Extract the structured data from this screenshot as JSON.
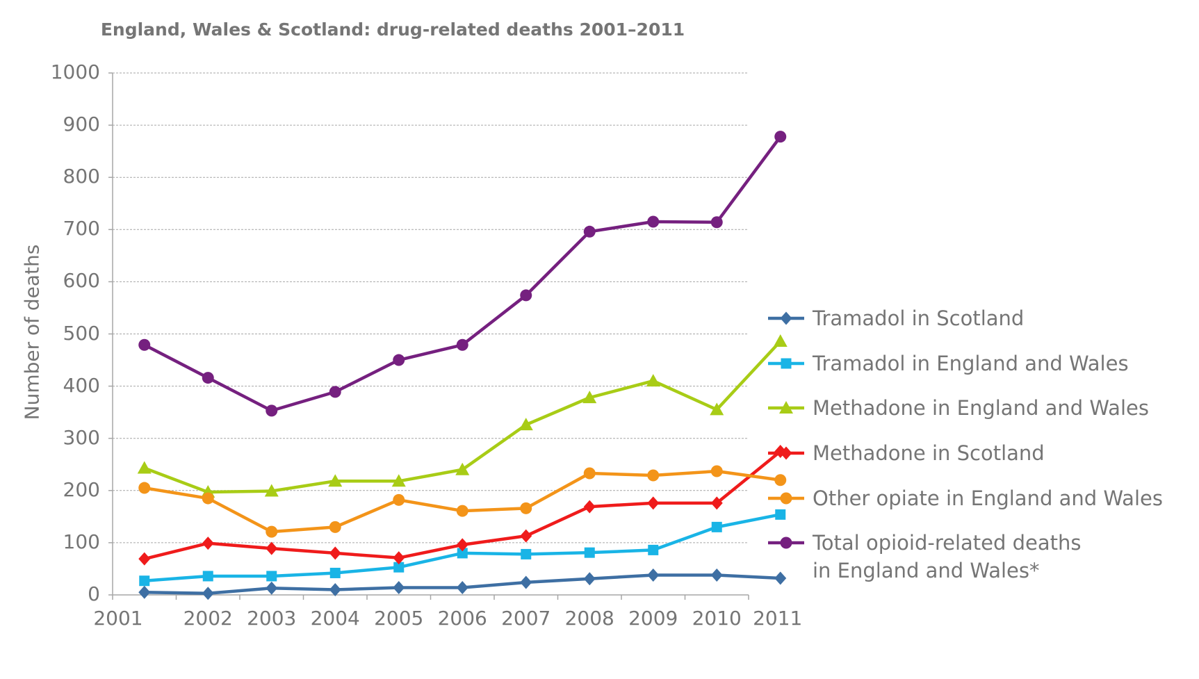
{
  "chart_data": {
    "type": "line",
    "title": "England, Wales & Scotland: drug-related deaths 2001–2011",
    "xlabel": "",
    "ylabel": "Number of deaths",
    "ylim": [
      0,
      1000
    ],
    "yticks": [
      "0",
      "100",
      "200",
      "300",
      "400",
      "500",
      "600",
      "700",
      "800",
      "900",
      "1000"
    ],
    "xticks": [
      "2001",
      "2002",
      "2003",
      "2004",
      "2005",
      "2006",
      "2007",
      "2008",
      "2009",
      "2010",
      "2011"
    ],
    "categories": [
      "2001",
      "2002",
      "2003",
      "2004",
      "2005",
      "2006",
      "2007",
      "2008",
      "2009",
      "2010",
      "2011"
    ],
    "grid": "horizontal dashed",
    "legend_position": "right",
    "series": [
      {
        "name": "Tramadol in Scotland",
        "color": "#3e6fa3",
        "marker": "diamond",
        "values": [
          5,
          3,
          13,
          10,
          14,
          14,
          24,
          31,
          38,
          38,
          32
        ]
      },
      {
        "name": "Tramadol in England and Wales",
        "color": "#19b4e6",
        "marker": "square",
        "values": [
          27,
          36,
          36,
          42,
          53,
          80,
          78,
          81,
          86,
          130,
          154
        ]
      },
      {
        "name": "Methadone in England and Wales",
        "color": "#a8cc16",
        "marker": "triangle",
        "values": [
          243,
          197,
          199,
          218,
          218,
          240,
          326,
          378,
          410,
          355,
          486
        ]
      },
      {
        "name": "Methadone in Scotland",
        "color": "#ef1b1b",
        "marker": "diamond",
        "values": [
          69,
          99,
          89,
          80,
          71,
          96,
          113,
          169,
          176,
          176,
          275
        ]
      },
      {
        "name": "Other opiate in England and Wales",
        "color": "#f39419",
        "marker": "circle",
        "values": [
          205,
          185,
          121,
          130,
          182,
          161,
          166,
          233,
          229,
          237,
          220
        ]
      },
      {
        "name": "Total opioid-related deaths\nin England and Wales*",
        "color": "#75207f",
        "marker": "circle",
        "values": [
          479,
          416,
          353,
          389,
          450,
          479,
          574,
          696,
          715,
          714,
          878
        ]
      }
    ]
  }
}
